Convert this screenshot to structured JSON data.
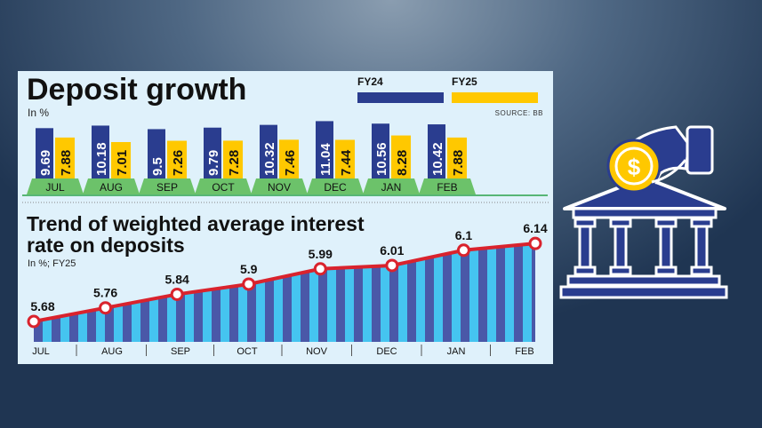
{
  "chart_data": [
    {
      "type": "bar",
      "title": "Deposit growth",
      "subtitle": "In %",
      "source": "SOURCE: BB",
      "categories": [
        "JUL",
        "AUG",
        "SEP",
        "OCT",
        "NOV",
        "DEC",
        "JAN",
        "FEB"
      ],
      "series": [
        {
          "name": "FY24",
          "values": [
            9.69,
            10.18,
            9.5,
            9.79,
            10.32,
            11.04,
            10.56,
            10.42
          ],
          "labels": [
            "9.69",
            "10.18",
            "9.5",
            "9.79",
            "10.32",
            "11.04",
            "10.56",
            "10.42"
          ]
        },
        {
          "name": "FY25",
          "values": [
            7.88,
            7.01,
            7.26,
            7.28,
            7.46,
            7.44,
            8.28,
            7.88
          ],
          "labels": [
            "7.88",
            "7.01",
            "7.26",
            "7.28",
            "7.46",
            "7.44",
            "8.28",
            "7.88"
          ]
        }
      ],
      "legend": "top-right"
    },
    {
      "type": "line",
      "title_line1": "Trend of weighted average interest",
      "title_line2": "rate on deposits",
      "subtitle": "In %; FY25",
      "categories": [
        "JUL",
        "AUG",
        "SEP",
        "OCT",
        "NOV",
        "DEC",
        "JAN",
        "FEB"
      ],
      "values": [
        5.68,
        5.76,
        5.84,
        5.9,
        5.99,
        6.01,
        6.1,
        6.14
      ],
      "labels": [
        "5.68",
        "5.76",
        "5.84",
        "5.9",
        "5.99",
        "6.01",
        "6.1",
        "6.14"
      ]
    }
  ],
  "colors": {
    "fy24": "#2a3d8f",
    "fy25": "#ffc800",
    "month_base": "#6cc26a",
    "line": "#d9232d",
    "stripe_dark": "#4a58a8",
    "stripe_light": "#45c4f0",
    "panel": "#dff1fb"
  },
  "icon": "bank-with-hand-dollar-coin-icon"
}
